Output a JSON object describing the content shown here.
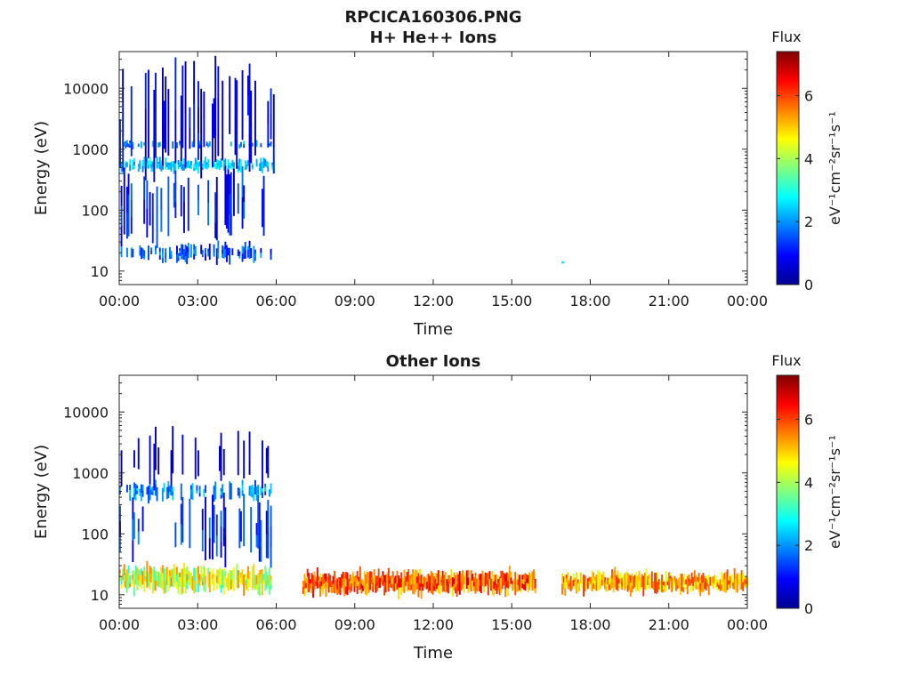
{
  "main_title": "RPCICA160306.PNG",
  "chart_data": [
    {
      "type": "heatmap",
      "title": "H+ He++ Ions",
      "xlabel": "Time",
      "ylabel": "Energy (eV)",
      "xticks": [
        "00:00",
        "03:00",
        "06:00",
        "09:00",
        "12:00",
        "15:00",
        "18:00",
        "21:00",
        "00:00"
      ],
      "xlim_hours": [
        0,
        24
      ],
      "yscale": "log",
      "yticks": [
        "10",
        "100",
        "1000",
        "10000"
      ],
      "ylim": [
        6,
        40000
      ],
      "colorbar": {
        "label": "Flux",
        "units": "eV⁻¹cm⁻²sr⁻¹s⁻¹",
        "range": [
          0,
          7.4
        ],
        "ticks": [
          "0",
          "2",
          "4",
          "6"
        ]
      },
      "bands": [
        {
          "t_start": 0.0,
          "t_end": 5.9,
          "e_center": 20,
          "e_spread": 0.15,
          "level": [
            0.7,
            2.2
          ],
          "density": 0.45
        },
        {
          "t_start": 0.0,
          "t_end": 5.9,
          "e_center": 550,
          "e_spread": 0.11,
          "level": [
            1.8,
            3.0
          ],
          "density": 0.75
        },
        {
          "t_start": 0.0,
          "t_end": 5.9,
          "e_center": 1200,
          "e_spread": 0.06,
          "level": [
            1.3,
            2.4
          ],
          "density": 0.35
        },
        {
          "t_start": 0.0,
          "t_end": 5.9,
          "e_center": 3000,
          "e_spread": 0.9,
          "level": [
            0.3,
            1.2
          ],
          "density": 0.3
        },
        {
          "t_start": 0.0,
          "t_end": 5.9,
          "e_center": 120,
          "e_spread": 0.55,
          "level": [
            0.5,
            1.8
          ],
          "density": 0.25
        },
        {
          "t_start": 16.9,
          "t_end": 17.0,
          "e_center": 14,
          "e_spread": 0.02,
          "level": [
            2.5,
            2.8
          ],
          "density": 1.0
        }
      ]
    },
    {
      "type": "heatmap",
      "title": "Other Ions",
      "xlabel": "Time",
      "ylabel": "Energy (eV)",
      "xticks": [
        "00:00",
        "03:00",
        "06:00",
        "09:00",
        "12:00",
        "15:00",
        "18:00",
        "21:00",
        "00:00"
      ],
      "xlim_hours": [
        0,
        24
      ],
      "yscale": "log",
      "yticks": [
        "10",
        "100",
        "1000",
        "10000"
      ],
      "ylim": [
        6,
        40000
      ],
      "colorbar": {
        "label": "Flux",
        "units": "eV⁻¹cm⁻²sr⁻¹s⁻¹",
        "range": [
          0,
          7.4
        ],
        "ticks": [
          "0",
          "2",
          "4",
          "6"
        ]
      },
      "bands": [
        {
          "t_start": 0.0,
          "t_end": 5.8,
          "e_center": 18,
          "e_spread": 0.22,
          "level": [
            3.0,
            5.6
          ],
          "density": 0.95
        },
        {
          "t_start": 0.0,
          "t_end": 5.8,
          "e_center": 500,
          "e_spread": 0.15,
          "level": [
            1.2,
            2.6
          ],
          "density": 0.45
        },
        {
          "t_start": 0.0,
          "t_end": 5.8,
          "e_center": 120,
          "e_spread": 0.55,
          "level": [
            0.6,
            2.0
          ],
          "density": 0.25
        },
        {
          "t_start": 0.0,
          "t_end": 5.8,
          "e_center": 1800,
          "e_spread": 0.4,
          "level": [
            0.3,
            1.0
          ],
          "density": 0.15
        },
        {
          "t_start": 7.0,
          "t_end": 15.9,
          "e_center": 16,
          "e_spread": 0.2,
          "level": [
            4.8,
            6.8
          ],
          "density": 1.0
        },
        {
          "t_start": 16.9,
          "t_end": 24.0,
          "e_center": 16,
          "e_spread": 0.18,
          "level": [
            4.3,
            6.2
          ],
          "density": 1.0
        }
      ]
    }
  ]
}
